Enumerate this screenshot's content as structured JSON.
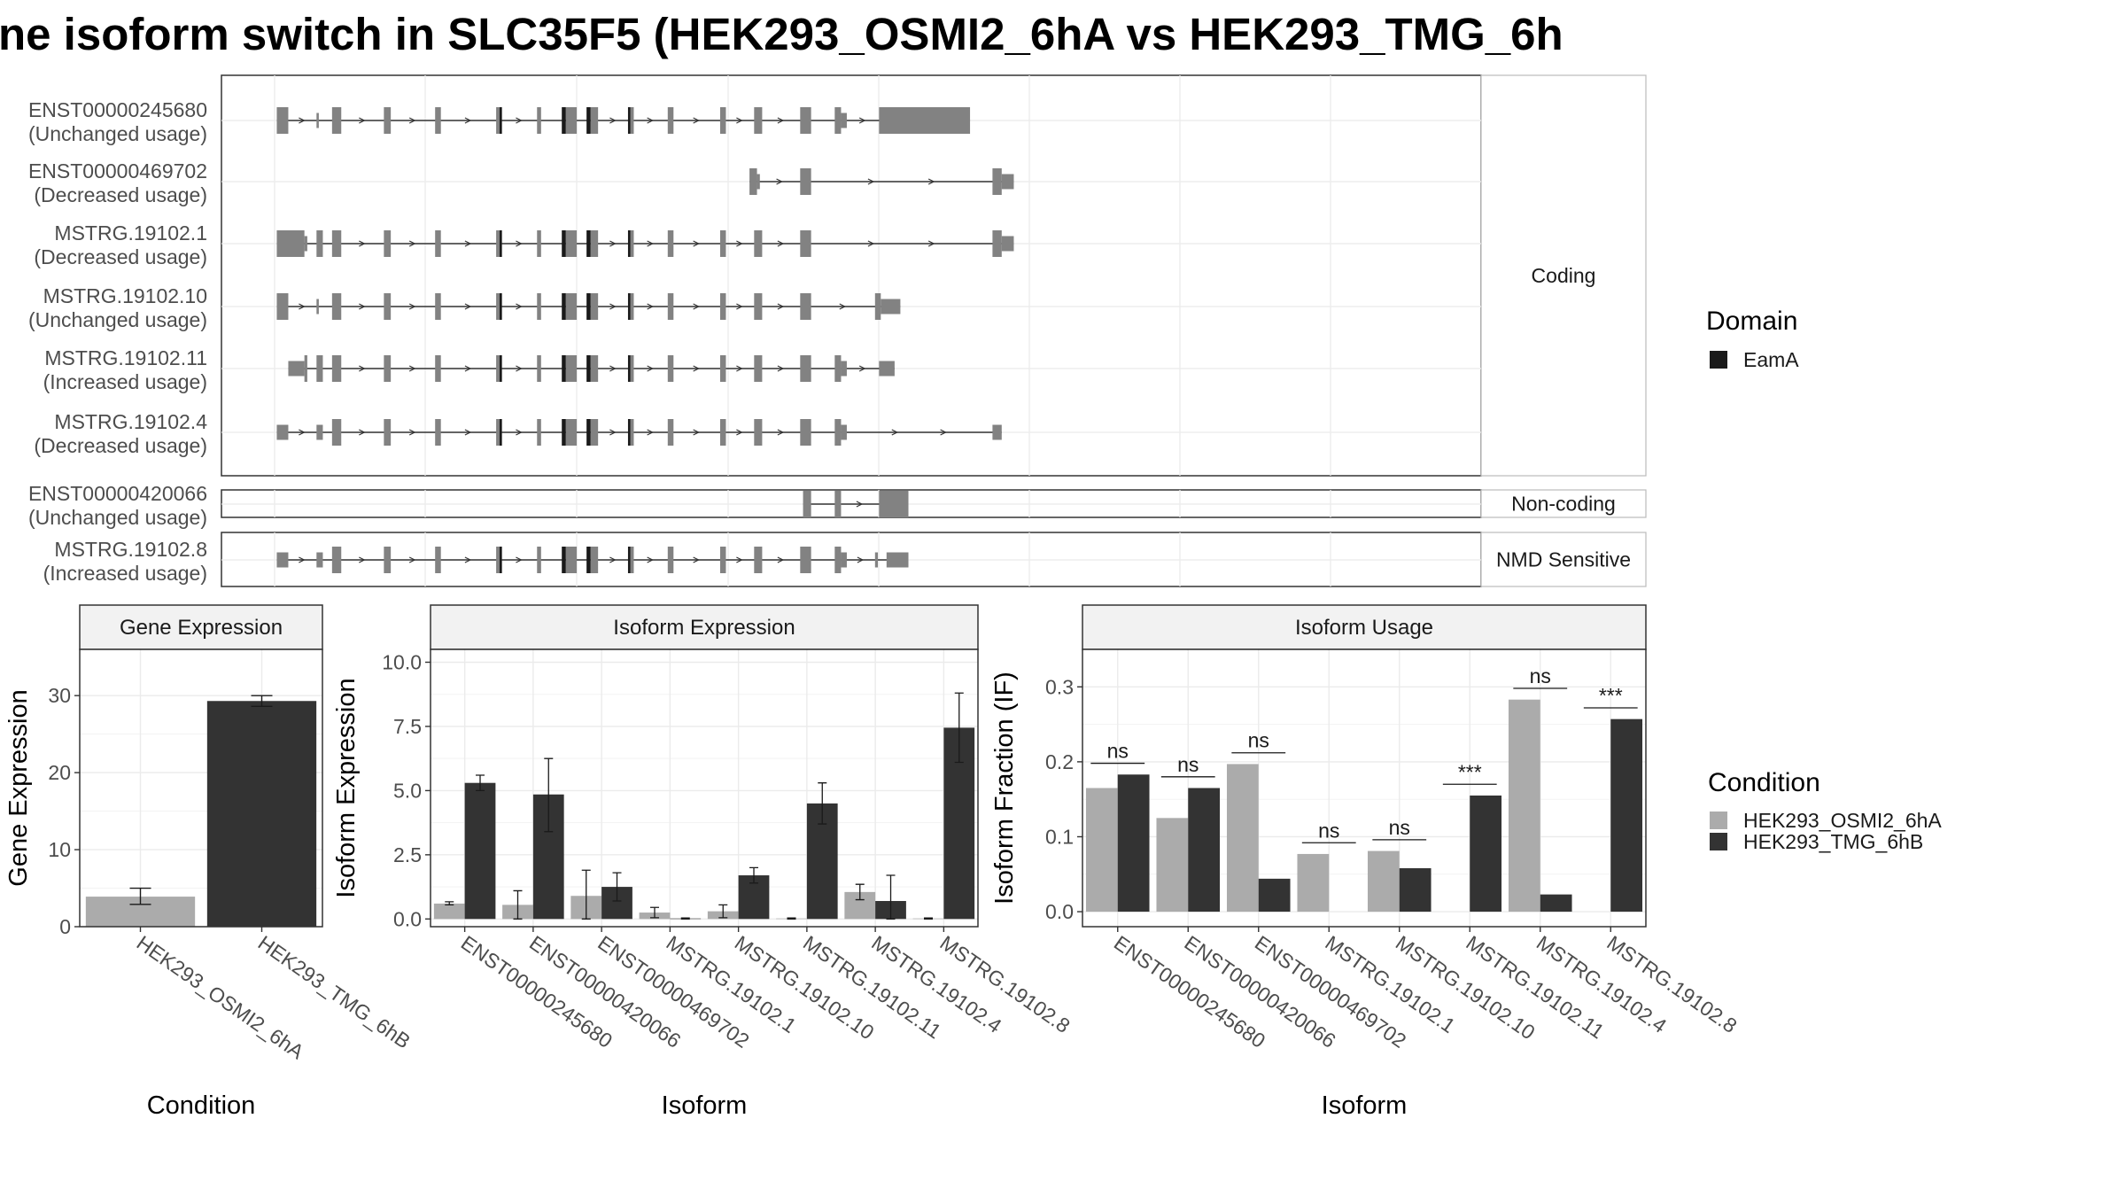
{
  "title": "ne isoform switch in SLC35F5 (HEK293_OSMI2_6hA vs HEK293_TMG_6h",
  "colors": {
    "exon": "#828282",
    "domain": "#1a1a1a",
    "cond_a": "#ababab",
    "cond_b": "#333333",
    "grid": "#ebebeb",
    "strip": "#f2f2f2",
    "border": "#333333"
  },
  "structure": {
    "groups": [
      {
        "label": "Coding",
        "isoforms": [
          {
            "id": "ENST00000245680",
            "usage": "(Unchanged usage)"
          },
          {
            "id": "ENST00000469702",
            "usage": "(Decreased usage)"
          },
          {
            "id": "MSTRG.19102.1",
            "usage": "(Decreased usage)"
          },
          {
            "id": "MSTRG.19102.10",
            "usage": "(Unchanged usage)"
          },
          {
            "id": "MSTRG.19102.11",
            "usage": "(Increased usage)"
          },
          {
            "id": "MSTRG.19102.4",
            "usage": "(Decreased usage)"
          }
        ]
      },
      {
        "label": "Non-coding",
        "isoforms": [
          {
            "id": "ENST00000420066",
            "usage": "(Unchanged usage)"
          }
        ]
      },
      {
        "label": "NMD Sensitive",
        "isoforms": [
          {
            "id": "MSTRG.19102.8",
            "usage": "(Increased usage)"
          }
        ]
      }
    ]
  },
  "legend_domain": {
    "title": "Domain",
    "items": [
      "EamA"
    ]
  },
  "legend_condition": {
    "title": "Condition",
    "items": [
      "HEK293_OSMI2_6hA",
      "HEK293_TMG_6hB"
    ]
  },
  "chart_data": [
    {
      "type": "bar",
      "title": "Gene Expression",
      "xlabel": "Condition",
      "ylabel": "Gene Expression",
      "categories": [
        "HEK293_OSMI2_6hA",
        "HEK293_TMG_6hB"
      ],
      "values": [
        3.9,
        29.3
      ],
      "errors": [
        [
          2.9,
          5.0
        ],
        [
          28.6,
          30.0
        ]
      ],
      "ylim": [
        0,
        36
      ],
      "yticks": [
        0,
        10,
        20,
        30
      ]
    },
    {
      "type": "bar",
      "title": "Isoform Expression",
      "xlabel": "Isoform",
      "ylabel": "Isoform Expression",
      "categories": [
        "ENST00000245680",
        "ENST00000420066",
        "ENST00000469702",
        "MSTRG.19102.1",
        "MSTRG.19102.10",
        "MSTRG.19102.11",
        "MSTRG.19102.4",
        "MSTRG.19102.8"
      ],
      "series": [
        {
          "name": "HEK293_OSMI2_6hA",
          "values": [
            0.6,
            0.55,
            0.9,
            0.25,
            0.3,
            0.02,
            1.05,
            0.02
          ],
          "errors": [
            [
              0.55,
              0.67
            ],
            [
              0.0,
              1.1
            ],
            [
              0.0,
              1.9
            ],
            [
              0.05,
              0.45
            ],
            [
              0.05,
              0.55
            ],
            [
              0.0,
              0.04
            ],
            [
              0.75,
              1.35
            ],
            [
              0.0,
              0.04
            ]
          ]
        },
        {
          "name": "HEK293_TMG_6hB",
          "values": [
            5.3,
            4.85,
            1.25,
            0.02,
            1.7,
            4.5,
            0.7,
            7.45
          ],
          "errors": [
            [
              5.0,
              5.6
            ],
            [
              3.4,
              6.25
            ],
            [
              0.7,
              1.8
            ],
            [
              0.0,
              0.04
            ],
            [
              1.4,
              2.0
            ],
            [
              3.7,
              5.3
            ],
            [
              0.0,
              1.7
            ],
            [
              6.1,
              8.8
            ]
          ]
        }
      ],
      "ylim": [
        -0.3,
        10.5
      ],
      "yticks": [
        0.0,
        2.5,
        5.0,
        7.5,
        10.0
      ]
    },
    {
      "type": "bar",
      "title": "Isoform Usage",
      "xlabel": "Isoform",
      "ylabel": "Isoform Fraction (IF)",
      "categories": [
        "ENST00000245680",
        "ENST00000420066",
        "ENST00000469702",
        "MSTRG.19102.1",
        "MSTRG.19102.10",
        "MSTRG.19102.11",
        "MSTRG.19102.4",
        "MSTRG.19102.8"
      ],
      "series": [
        {
          "name": "HEK293_OSMI2_6hA",
          "values": [
            0.165,
            0.125,
            0.197,
            0.077,
            0.081,
            0.0,
            0.283,
            0.0
          ]
        },
        {
          "name": "HEK293_TMG_6hB",
          "values": [
            0.183,
            0.165,
            0.044,
            0.0,
            0.058,
            0.155,
            0.023,
            0.257
          ]
        }
      ],
      "significance": [
        "ns",
        "ns",
        "ns",
        "ns",
        "ns",
        "***",
        "ns",
        "***"
      ],
      "sig_y": [
        0.198,
        0.18,
        0.212,
        0.092,
        0.096,
        0.17,
        0.298,
        0.272
      ],
      "ylim": [
        -0.02,
        0.35
      ],
      "yticks": [
        0.0,
        0.1,
        0.2,
        0.3
      ]
    }
  ]
}
